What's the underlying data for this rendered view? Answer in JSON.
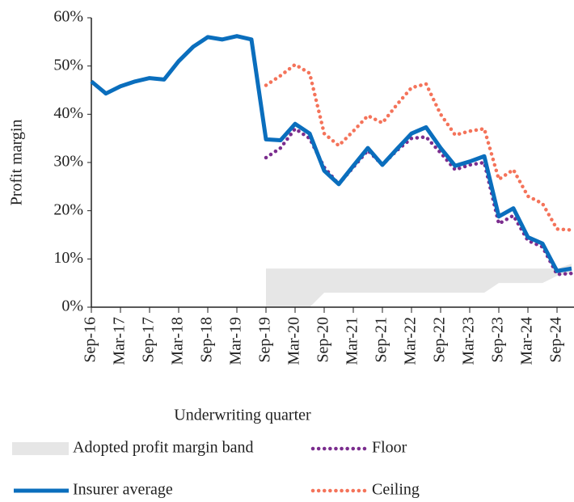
{
  "chart_data": {
    "type": "line",
    "x_label": "Underwriting quarter",
    "y_label": "Profit margin",
    "categories": [
      "Sep-16",
      null,
      "Mar-17",
      null,
      "Sep-17",
      null,
      "Mar-18",
      null,
      "Sep-18",
      null,
      "Mar-19",
      null,
      "Sep-19",
      null,
      "Mar-20",
      null,
      "Sep-20",
      null,
      "Mar-21",
      null,
      "Sep-21",
      null,
      "Mar-22",
      null,
      "Sep-22",
      null,
      "Mar-23",
      null,
      "Sep-23",
      null,
      "Mar-24",
      null,
      "Sep-24",
      null
    ],
    "ylim": [
      0,
      60
    ],
    "yticks": [
      {
        "value": 0,
        "label": "0%"
      },
      {
        "value": 10,
        "label": "10%"
      },
      {
        "value": 20,
        "label": "20%"
      },
      {
        "value": 30,
        "label": "30%"
      },
      {
        "value": 40,
        "label": "40%"
      },
      {
        "value": 50,
        "label": "50%"
      },
      {
        "value": 60,
        "label": "60%"
      }
    ],
    "band": {
      "name": "Adopted profit margin band",
      "color": "#e6e6e6",
      "lower": [
        null,
        null,
        null,
        null,
        null,
        null,
        null,
        null,
        null,
        null,
        null,
        null,
        0,
        0,
        0,
        0,
        3,
        3,
        3,
        3,
        3,
        3,
        3,
        3,
        3,
        3,
        3,
        3,
        5,
        5,
        5,
        5,
        6.5,
        7
      ],
      "upper": [
        null,
        null,
        null,
        null,
        null,
        null,
        null,
        null,
        null,
        null,
        null,
        null,
        8,
        8,
        8,
        8,
        8,
        8,
        8,
        8,
        8,
        8,
        8,
        8,
        8,
        8,
        8,
        8,
        8,
        8,
        8,
        8,
        8,
        9
      ]
    },
    "series": [
      {
        "name": "Floor",
        "color": "#7b2d8e",
        "style": "dotted",
        "values": [
          null,
          null,
          null,
          null,
          null,
          null,
          null,
          null,
          null,
          null,
          null,
          null,
          31,
          33,
          37,
          35,
          29,
          25.5,
          29,
          32.5,
          29.5,
          32.5,
          35,
          35.3,
          32,
          28.5,
          29.5,
          30,
          17.3,
          19,
          13.8,
          12.5,
          6.8,
          7
        ]
      },
      {
        "name": "Insurer average",
        "color": "#0a6ebd",
        "style": "solid",
        "values": [
          46.8,
          44.3,
          45.8,
          46.8,
          47.5,
          47.2,
          51,
          54,
          56,
          55.5,
          56.2,
          55.5,
          34.8,
          34.6,
          38,
          36,
          28.3,
          25.5,
          29.3,
          33,
          29.5,
          32.8,
          36,
          37.3,
          33,
          29.3,
          30.2,
          31.3,
          18.8,
          20.5,
          14.5,
          13.2,
          7.5,
          8
        ]
      },
      {
        "name": "Ceiling",
        "color": "#f4735a",
        "style": "dotted",
        "values": [
          null,
          null,
          null,
          null,
          null,
          null,
          null,
          null,
          null,
          null,
          null,
          null,
          46,
          48,
          50.3,
          48.5,
          36,
          33.5,
          36.5,
          39.7,
          38.2,
          42,
          45.5,
          46.3,
          40,
          35.7,
          36.5,
          37,
          26.5,
          28.5,
          23,
          21.5,
          16.2,
          16
        ]
      }
    ]
  }
}
